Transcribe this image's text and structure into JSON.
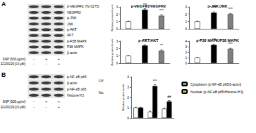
{
  "figure": {
    "panels": [
      {
        "label": "A",
        "blot_groups": [
          {
            "rows": [
              "p-VEGFR2 (Tyr1175)",
              "VEGFR2",
              "p-JNK",
              "JNK",
              "p-AKT",
              "AKT",
              "p-P38 MAPK",
              "P38 MAPK",
              "β-actin"
            ]
          }
        ],
        "treatments": [
          {
            "name": "SNP (500 μg/ml)",
            "signs": [
              "-",
              "+",
              "+"
            ]
          },
          {
            "name": "EG00229 (10 μM)",
            "signs": [
              "-",
              "-",
              "+"
            ]
          }
        ]
      },
      {
        "label": "B",
        "blot_groups": [
          {
            "compartment": "cytosol",
            "rows": [
              "p-NF-κB p65",
              "β-actin"
            ]
          },
          {
            "compartment": "Nucleus",
            "rows": [
              "p-NF-κB p65",
              "Histone H3"
            ]
          }
        ],
        "treatments": [
          {
            "name": "SNP (500 μg/ml)",
            "signs": [
              "-",
              "+",
              "+"
            ]
          },
          {
            "name": "EG00229 (10 μM)",
            "signs": [
              "-",
              "-",
              "+"
            ]
          }
        ]
      }
    ]
  },
  "chart_data": [
    {
      "type": "bar",
      "title": "p-VEGFR2/VEGFR2",
      "ylabel": "Relative protein levels",
      "categories": [
        null,
        null,
        null
      ],
      "values": [
        1,
        2.6,
        1.8
      ],
      "errors": [
        0.05,
        0.15,
        0.1
      ],
      "colors": [
        "#ffffff",
        "#000000",
        "#808080"
      ],
      "ylim": [
        0,
        3
      ],
      "yticks": [
        0,
        1,
        2,
        3
      ],
      "tick_labels": "y",
      "annotations": [
        {
          "index": 1,
          "text": "***"
        },
        {
          "index": 2,
          "text": "***"
        }
      ]
    },
    {
      "type": "bar",
      "title": "p-JNK/JNK",
      "categories": [
        null,
        null,
        null
      ],
      "values": [
        1,
        2.2,
        2.0
      ],
      "errors": [
        0.05,
        0.12,
        0.1
      ],
      "colors": [
        "#ffffff",
        "#000000",
        "#808080"
      ],
      "ylim": [
        0,
        3
      ],
      "yticks": [
        0,
        1,
        2,
        3
      ],
      "tick_labels": "y",
      "annotations": [
        {
          "index": 1,
          "text": "***"
        },
        {
          "index": 2,
          "text": "***"
        }
      ]
    },
    {
      "type": "bar",
      "title": "p-AKT/AKT",
      "ylabel": "Relative protein levels",
      "categories": [
        null,
        null,
        null
      ],
      "values": [
        1,
        2.4,
        1.7
      ],
      "errors": [
        0.05,
        0.12,
        0.1
      ],
      "colors": [
        "#ffffff",
        "#000000",
        "#808080"
      ],
      "ylim": [
        0,
        3
      ],
      "yticks": [
        0,
        1,
        2,
        3
      ],
      "tick_labels": "y",
      "annotations": [
        {
          "index": 1,
          "text": "***"
        },
        {
          "index": 2,
          "text": "**"
        }
      ]
    },
    {
      "type": "bar",
      "title": "p-P38 MAPK/P38 MAPK",
      "categories": [
        null,
        null,
        null
      ],
      "values": [
        1,
        3.3,
        2.6
      ],
      "errors": [
        0.05,
        0.15,
        0.12
      ],
      "colors": [
        "#ffffff",
        "#000000",
        "#808080"
      ],
      "ylim": [
        0,
        4
      ],
      "yticks": [
        0,
        1,
        2,
        3,
        4
      ],
      "tick_labels": "y",
      "annotations": [
        {
          "index": 1,
          "text": "***"
        },
        {
          "index": 2,
          "text": "***"
        }
      ]
    },
    {
      "type": "bar",
      "ylabel": "Relative protein levels",
      "categories": [
        null,
        null,
        null
      ],
      "series": [
        {
          "name": "Cytoplasm (p-NF-κB p65/β-actin)",
          "color": "#ffffff",
          "values": [
            1,
            0.6,
            0.9
          ],
          "errors": [
            0.05,
            0.06,
            0.06
          ]
        },
        {
          "name": "Nuclear (p-NF-κB p65/Histone H3)",
          "color": "#000000",
          "values": [
            1,
            3.1,
            1.6
          ],
          "errors": [
            0.05,
            0.15,
            0.1
          ]
        }
      ],
      "ylim": [
        0,
        4
      ],
      "yticks": [
        0,
        1,
        2,
        3,
        4
      ],
      "tick_labels": "y",
      "legend": "right",
      "annotations": [
        {
          "series": 1,
          "index": 1,
          "text": "***"
        },
        {
          "series": 1,
          "index": 2,
          "text": "##"
        }
      ]
    }
  ]
}
